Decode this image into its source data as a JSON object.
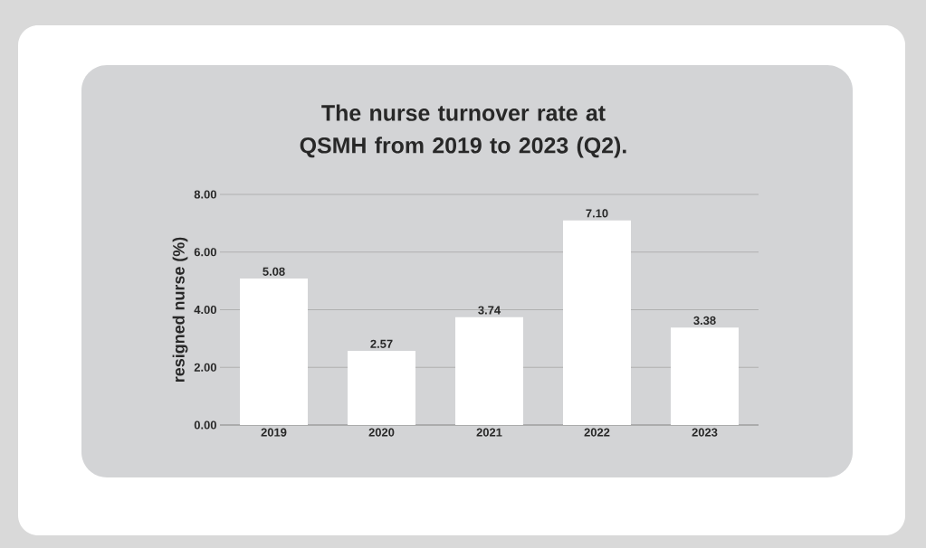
{
  "chart_data": {
    "type": "bar",
    "title": "The nurse turnover rate at QSMH from 2019 to 2023 (Q2).",
    "ylabel": "resigned nurse (%)",
    "categories": [
      "2019",
      "2020",
      "2021",
      "2022",
      "2023"
    ],
    "values": [
      5.08,
      2.57,
      3.74,
      7.1,
      3.38
    ],
    "value_labels": [
      "5.08",
      "2.57",
      "3.74",
      "7.10",
      "3.38"
    ],
    "color": "#ffffff",
    "ylim": [
      0,
      8
    ],
    "yticks": [
      {
        "value": 0,
        "label": "0.00"
      },
      {
        "value": 2,
        "label": "2.00"
      },
      {
        "value": 4,
        "label": "4.00"
      },
      {
        "value": 6,
        "label": "6.00"
      },
      {
        "value": 8,
        "label": "8.00"
      }
    ],
    "grid": "y"
  }
}
